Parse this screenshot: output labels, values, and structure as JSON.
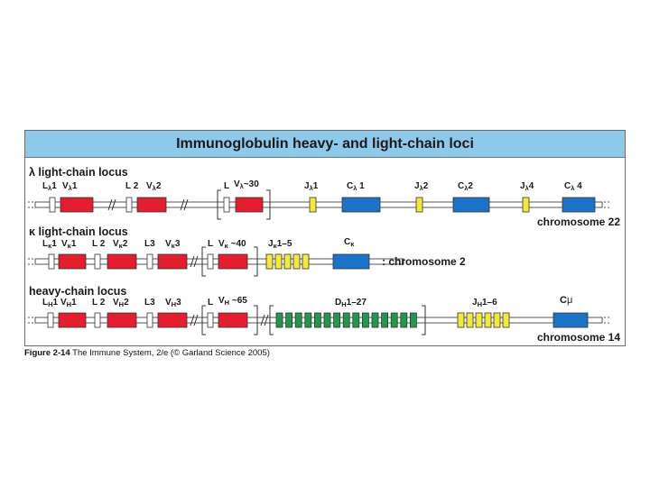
{
  "title": "Immunoglobulin heavy- and light-chain loci",
  "caption": {
    "figure": "Figure 2-14",
    "text": "The Immune System, 2/e (© Garland Science 2005)"
  },
  "colors": {
    "title_bg": "#8fc9ea",
    "v_segment": "#e31e2e",
    "j_segment": "#f2ea3a",
    "c_segment": "#1a73c6",
    "d_segment": "#1f9a4a",
    "leader": "#ffffff"
  },
  "loci": [
    {
      "name": "lambda-locus",
      "title": "λ light-chain locus",
      "chromosome": "chromosome 22",
      "labels": [
        "Lλ1",
        "Vλ1",
        "L 2",
        "Vλ2",
        "L",
        "Vλ~30",
        "Jλ1",
        "Cλ 1",
        "Jλ2",
        "Cλ2",
        "Jλ4",
        "Cλ 4"
      ]
    },
    {
      "name": "kappa-locus",
      "title": "κ light-chain locus",
      "chromosome": "chromosome 2",
      "labels": [
        "Lκ1",
        "Vκ1",
        "L 2",
        "Vκ2",
        "L3",
        "Vκ3",
        "L",
        "Vκ ~40",
        "Jκ1–5",
        "Cκ"
      ]
    },
    {
      "name": "heavy-locus",
      "title": "heavy-chain locus",
      "chromosome": "chromosome 14",
      "labels": [
        "LH1",
        "VH1",
        "L 2",
        "VH2",
        "L3",
        "VH3",
        "L",
        "VH ~65",
        "DH1–27",
        "JH1–6",
        "Cμ"
      ]
    }
  ]
}
